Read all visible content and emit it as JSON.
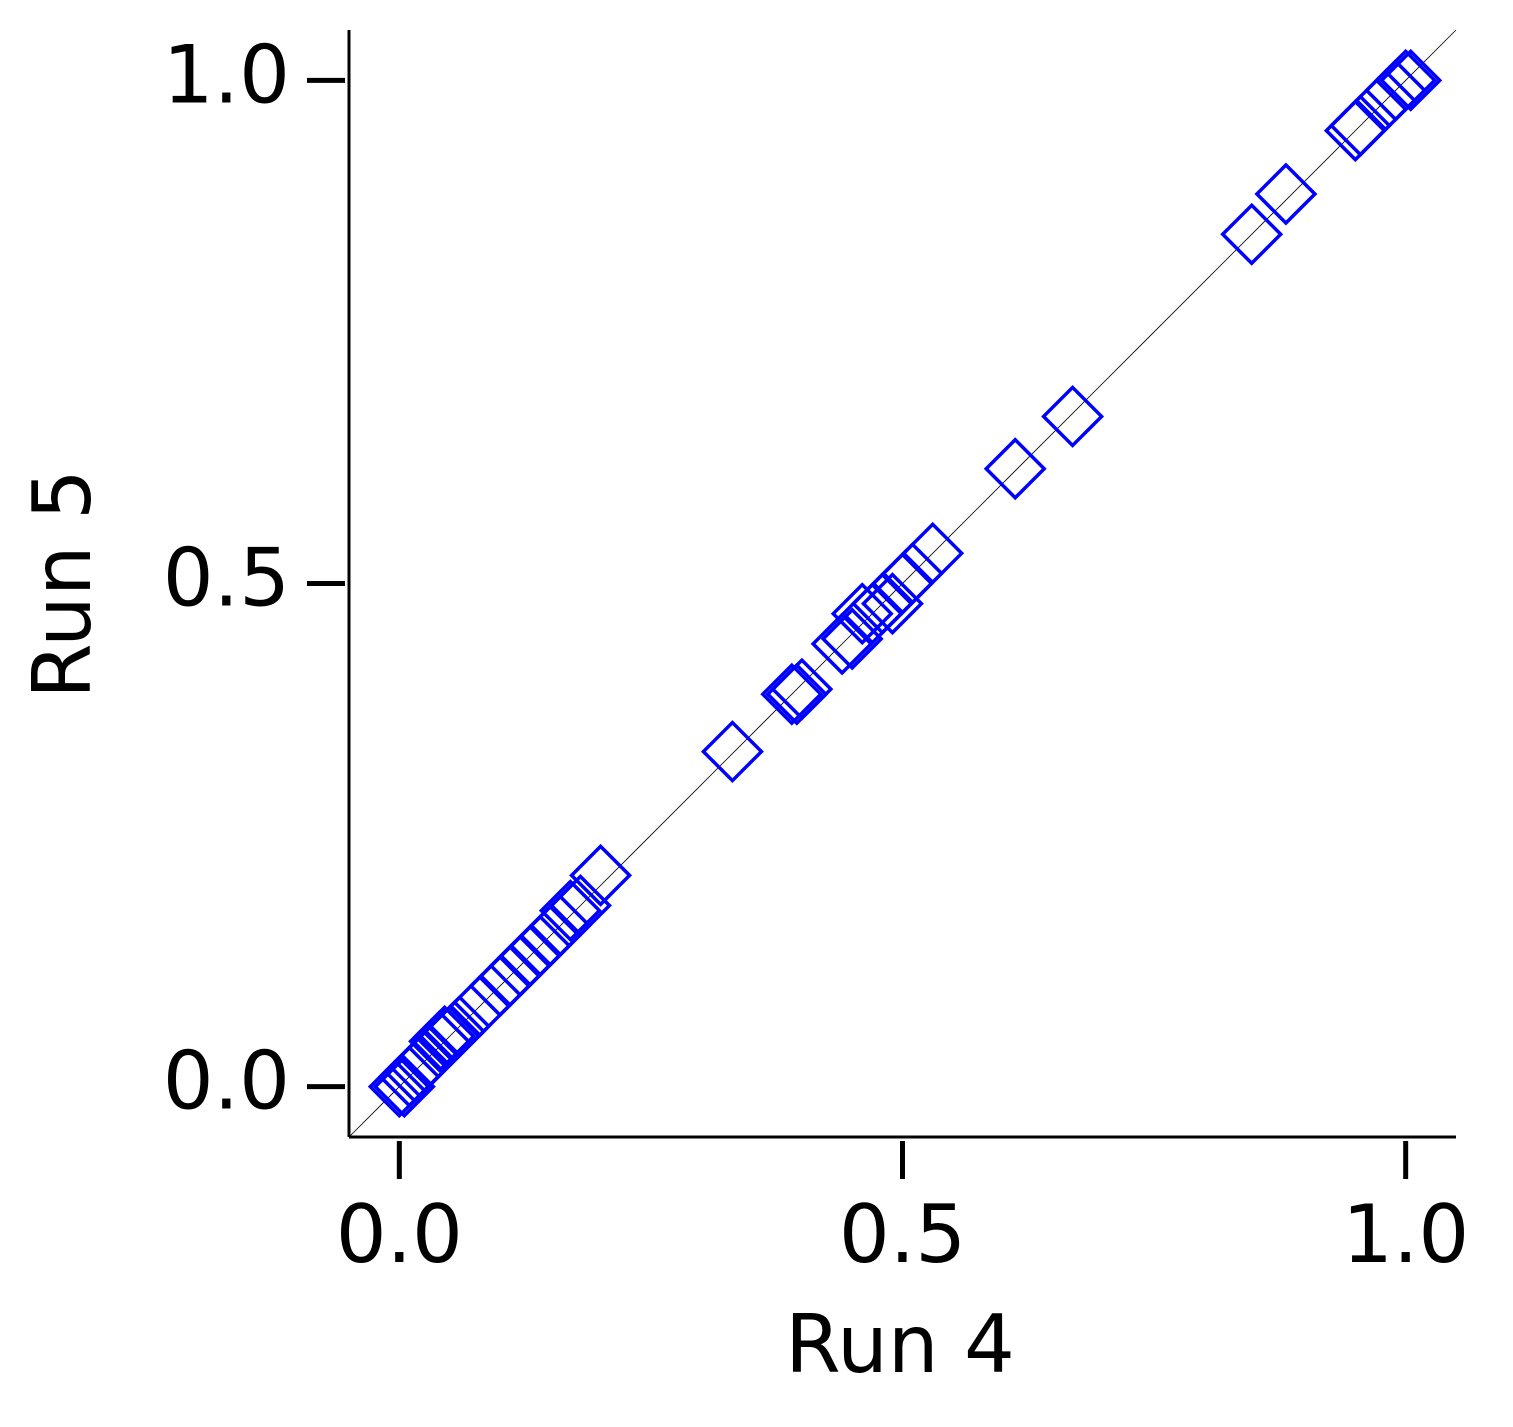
{
  "chart_data": {
    "type": "scatter",
    "xlabel": "Run 4",
    "ylabel": "Run 5",
    "x": [
      0.0,
      0.005,
      0.01,
      0.015,
      0.02,
      0.025,
      0.03,
      0.04,
      0.045,
      0.05,
      0.055,
      0.06,
      0.08,
      0.1,
      0.11,
      0.12,
      0.13,
      0.14,
      0.15,
      0.16,
      0.17,
      0.18,
      0.2,
      0.331,
      0.39,
      0.395,
      0.4,
      0.44,
      0.45,
      0.46,
      0.47,
      0.48,
      0.49,
      0.5,
      0.51,
      0.53,
      0.612,
      0.669,
      0.847,
      0.881,
      0.95,
      0.955,
      0.98,
      0.99,
      1.0,
      1.005
    ],
    "values": [
      0.0,
      0.0,
      0.01,
      0.015,
      0.02,
      0.025,
      0.03,
      0.045,
      0.05,
      0.05,
      0.055,
      0.06,
      0.08,
      0.1,
      0.11,
      0.12,
      0.13,
      0.14,
      0.15,
      0.16,
      0.175,
      0.18,
      0.21,
      0.333,
      0.39,
      0.39,
      0.395,
      0.44,
      0.445,
      0.47,
      0.47,
      0.48,
      0.48,
      0.5,
      0.51,
      0.53,
      0.614,
      0.666,
      0.847,
      0.887,
      0.95,
      0.955,
      0.98,
      0.99,
      1.0,
      1.0
    ],
    "color": "#0000ff",
    "xlim": [
      -0.05,
      1.05
    ],
    "ylim": [
      -0.05,
      1.05
    ],
    "xticks": [
      {
        "value": 0,
        "label": "0.0"
      },
      0.5,
      {
        "value": 1,
        "label": "1.0"
      }
    ],
    "yticks": [
      {
        "value": 0,
        "label": "0.0"
      },
      0.5,
      {
        "value": 1,
        "label": "1.0"
      }
    ]
  }
}
